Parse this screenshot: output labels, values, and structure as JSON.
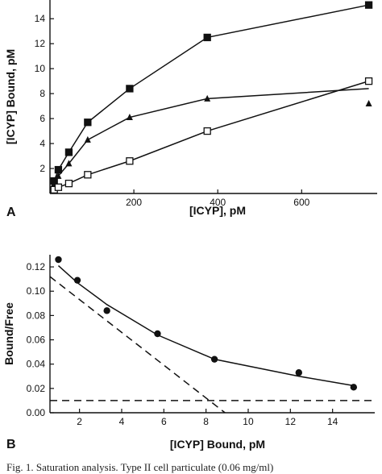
{
  "chart_data": [
    {
      "panel_label": "A",
      "type": "line",
      "xlabel": "[ICYP], pM",
      "ylabel": "[ICYP] Bound, pM",
      "xlim": [
        0,
        780
      ],
      "ylim": [
        0,
        15.5
      ],
      "xticks": [
        200,
        400,
        600
      ],
      "yticks": [
        2,
        4,
        6,
        8,
        10,
        12,
        14
      ],
      "series": [
        {
          "marker": "filled-square",
          "x": [
            10,
            20,
            45,
            90,
            190,
            375,
            760
          ],
          "y": [
            1.0,
            1.9,
            3.3,
            5.7,
            8.4,
            12.5,
            15.1
          ]
        },
        {
          "marker": "filled-triangle",
          "x": [
            10,
            20,
            45,
            90,
            190,
            375,
            760
          ],
          "y": [
            0.8,
            1.4,
            2.4,
            4.3,
            6.1,
            7.6,
            7.2
          ],
          "curve_x": [
            10,
            20,
            45,
            90,
            190,
            375,
            760
          ],
          "curve_y": [
            0.8,
            1.4,
            2.4,
            4.3,
            6.1,
            7.6,
            8.4
          ]
        },
        {
          "marker": "open-square",
          "x": [
            10,
            20,
            45,
            90,
            190,
            375,
            760
          ],
          "y": [
            0.3,
            0.5,
            0.8,
            1.5,
            2.6,
            5.0,
            9.0
          ]
        }
      ]
    },
    {
      "panel_label": "B",
      "type": "scatter",
      "xlabel": "[ICYP] Bound, pM",
      "ylabel": "Bound/Free",
      "xlim": [
        0.6,
        16
      ],
      "ylim": [
        0.0,
        0.13
      ],
      "xticks": [
        2,
        4,
        6,
        8,
        10,
        12,
        14
      ],
      "yticks": [
        "0.00",
        "0.02",
        "0.04",
        "0.06",
        "0.08",
        "0.10",
        "0.12"
      ],
      "points": {
        "x": [
          1.0,
          1.9,
          3.3,
          5.7,
          8.4,
          12.4,
          15.0
        ],
        "y": [
          0.126,
          0.109,
          0.084,
          0.065,
          0.044,
          0.033,
          0.021
        ]
      },
      "fit_curve": {
        "x": [
          1.0,
          1.9,
          3.3,
          5.7,
          8.4,
          12.4,
          15.1
        ],
        "y": [
          0.121,
          0.107,
          0.089,
          0.064,
          0.044,
          0.03,
          0.022
        ]
      },
      "dashed_lines": [
        {
          "x": [
            0.6,
            8.9
          ],
          "y": [
            0.112,
            0.0
          ]
        },
        {
          "x": [
            0.6,
            16
          ],
          "y": [
            0.01,
            0.01
          ]
        }
      ]
    }
  ],
  "caption": "Fig. 1. Saturation analysis. Type II cell particulate (0.06 mg/ml)"
}
